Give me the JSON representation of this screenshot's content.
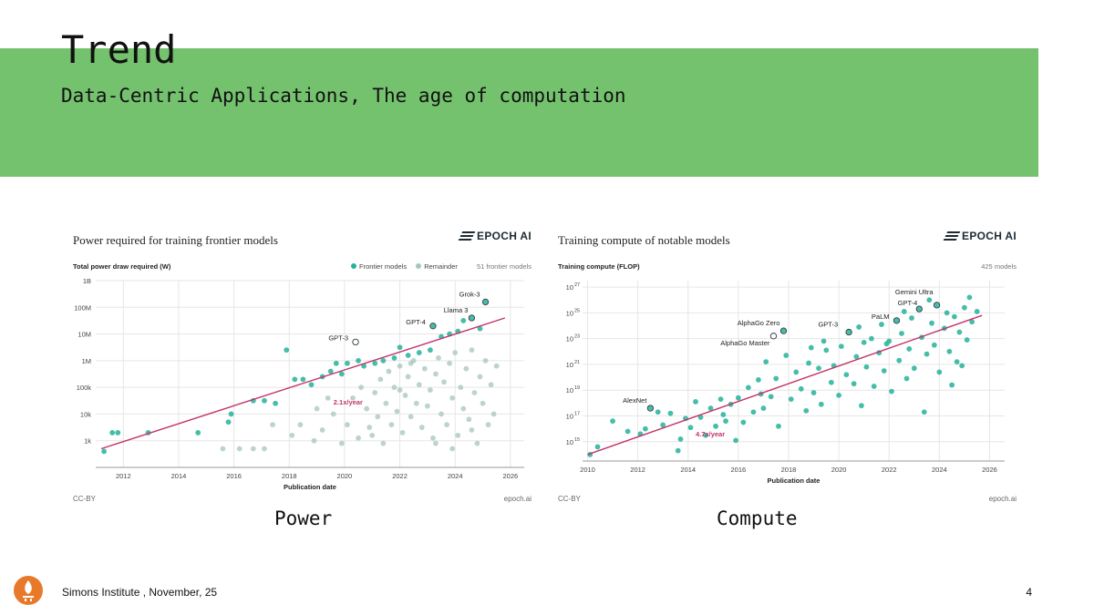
{
  "slide": {
    "title": "Trend",
    "subtitle": "Data-Centric Applications, The age of computation",
    "footer": "Simons Institute , November, 25",
    "page_number": "4",
    "band_color": "#74c16e",
    "captions": {
      "power": "Power",
      "compute": "Compute"
    }
  },
  "chart_data": [
    {
      "type": "scatter",
      "title": "Power required for training frontier models",
      "brand": "EPOCH AI",
      "ylabel": "Total power draw required (W)",
      "xlabel": "Publication date",
      "yscale": "log",
      "xlim": [
        2011,
        2026.5
      ],
      "ylim_exp": [
        2,
        9
      ],
      "xticks": [
        "2012",
        "2014",
        "2016",
        "2018",
        "2020",
        "2022",
        "2024",
        "2026"
      ],
      "yticks": [
        "1k",
        "10k",
        "100k",
        "1M",
        "10M",
        "100M",
        "1B"
      ],
      "legend": {
        "frontier": "Frontier models",
        "remainder": "Remainder",
        "count": "51 frontier models",
        "placement": "top-right"
      },
      "credit": "CC-BY",
      "site": "epoch.ai",
      "colors": {
        "frontier": "#26b29a",
        "remainder": "#a6c6ba",
        "trend": "#c2336b"
      },
      "trend": {
        "label": "2.1x/year",
        "from": [
          2011.2,
          2.7
        ],
        "to": [
          2025.8,
          7.6
        ]
      },
      "annotations": [
        {
          "label": "Grok-3",
          "x": 2025.1,
          "y": 8.2
        },
        {
          "label": "Llama 3",
          "x": 2024.6,
          "y": 7.6
        },
        {
          "label": "GPT-4",
          "x": 2023.2,
          "y": 7.3
        },
        {
          "label": "GPT-3",
          "x": 2020.4,
          "y": 6.7
        }
      ],
      "frontier_points": [
        [
          2011.3,
          2.6
        ],
        [
          2011.6,
          3.3
        ],
        [
          2011.8,
          3.3
        ],
        [
          2012.9,
          3.3
        ],
        [
          2014.7,
          3.3
        ],
        [
          2015.8,
          3.7
        ],
        [
          2015.9,
          4.0
        ],
        [
          2016.7,
          4.5
        ],
        [
          2017.1,
          4.5
        ],
        [
          2017.5,
          4.4
        ],
        [
          2017.9,
          6.4
        ],
        [
          2018.2,
          5.3
        ],
        [
          2018.5,
          5.3
        ],
        [
          2018.8,
          5.1
        ],
        [
          2019.2,
          5.4
        ],
        [
          2019.5,
          5.6
        ],
        [
          2019.7,
          5.9
        ],
        [
          2019.9,
          5.5
        ],
        [
          2020.1,
          5.9
        ],
        [
          2020.5,
          6.0
        ],
        [
          2020.7,
          5.8
        ],
        [
          2021.1,
          5.9
        ],
        [
          2021.4,
          6.0
        ],
        [
          2021.8,
          6.1
        ],
        [
          2022.0,
          6.5
        ],
        [
          2022.3,
          6.2
        ],
        [
          2022.7,
          6.3
        ],
        [
          2023.1,
          6.4
        ],
        [
          2023.2,
          7.3
        ],
        [
          2023.5,
          6.9
        ],
        [
          2023.8,
          7.0
        ],
        [
          2024.1,
          7.1
        ],
        [
          2024.3,
          7.5
        ],
        [
          2024.6,
          7.6
        ],
        [
          2024.9,
          7.2
        ],
        [
          2025.1,
          8.2
        ]
      ],
      "remainder_points": [
        [
          2016.2,
          2.7
        ],
        [
          2016.7,
          2.7
        ],
        [
          2015.6,
          2.7
        ],
        [
          2017.1,
          2.7
        ],
        [
          2017.4,
          3.6
        ],
        [
          2018.1,
          3.2
        ],
        [
          2018.4,
          3.6
        ],
        [
          2018.9,
          3.0
        ],
        [
          2019.0,
          4.2
        ],
        [
          2019.2,
          3.4
        ],
        [
          2019.6,
          4.0
        ],
        [
          2019.9,
          2.9
        ],
        [
          2020.1,
          3.6
        ],
        [
          2020.3,
          4.6
        ],
        [
          2020.5,
          3.1
        ],
        [
          2020.6,
          5.0
        ],
        [
          2020.8,
          4.2
        ],
        [
          2020.9,
          3.5
        ],
        [
          2021.1,
          4.8
        ],
        [
          2021.2,
          3.9
        ],
        [
          2021.3,
          5.3
        ],
        [
          2021.4,
          2.9
        ],
        [
          2021.5,
          4.4
        ],
        [
          2021.6,
          5.6
        ],
        [
          2021.7,
          3.6
        ],
        [
          2021.8,
          5.0
        ],
        [
          2021.9,
          4.1
        ],
        [
          2022.0,
          5.8
        ],
        [
          2022.1,
          3.3
        ],
        [
          2022.2,
          4.7
        ],
        [
          2022.3,
          5.4
        ],
        [
          2022.4,
          3.9
        ],
        [
          2022.5,
          6.0
        ],
        [
          2022.6,
          4.4
        ],
        [
          2022.7,
          5.1
        ],
        [
          2022.8,
          3.5
        ],
        [
          2022.9,
          5.7
        ],
        [
          2023.0,
          4.3
        ],
        [
          2023.1,
          4.9
        ],
        [
          2023.2,
          3.1
        ],
        [
          2023.3,
          5.5
        ],
        [
          2023.4,
          6.1
        ],
        [
          2023.5,
          4.0
        ],
        [
          2023.6,
          5.2
        ],
        [
          2023.7,
          3.6
        ],
        [
          2023.8,
          5.9
        ],
        [
          2023.9,
          4.6
        ],
        [
          2024.0,
          6.3
        ],
        [
          2024.1,
          3.2
        ],
        [
          2024.2,
          5.0
        ],
        [
          2024.3,
          4.2
        ],
        [
          2024.4,
          5.7
        ],
        [
          2024.5,
          3.8
        ],
        [
          2024.6,
          6.4
        ],
        [
          2024.7,
          4.8
        ],
        [
          2024.8,
          2.9
        ],
        [
          2024.9,
          5.4
        ],
        [
          2025.0,
          4.4
        ],
        [
          2025.1,
          6.0
        ],
        [
          2025.2,
          3.6
        ],
        [
          2025.3,
          5.1
        ],
        [
          2025.4,
          4.0
        ],
        [
          2025.5,
          5.8
        ],
        [
          2023.3,
          2.9
        ],
        [
          2022.4,
          5.9
        ],
        [
          2021.0,
          3.2
        ],
        [
          2019.4,
          4.6
        ],
        [
          2023.9,
          2.7
        ],
        [
          2024.6,
          3.4
        ],
        [
          2022.0,
          4.9
        ]
      ]
    },
    {
      "type": "scatter",
      "title": "Training compute of notable models",
      "brand": "EPOCH AI",
      "ylabel": "Training compute (FLOP)",
      "xlabel": "Publication date",
      "yscale": "log",
      "xlim": [
        2009.8,
        2026.6
      ],
      "ylim_exp": [
        13.5,
        27.5
      ],
      "xticks": [
        "2010",
        "2012",
        "2014",
        "2016",
        "2018",
        "2020",
        "2022",
        "2024",
        "2026"
      ],
      "yticks_base": "10",
      "yticks_exp": [
        "15",
        "17",
        "19",
        "21",
        "23",
        "25",
        "27"
      ],
      "count": "425 models",
      "credit": "CC-BY",
      "site": "epoch.ai",
      "colors": {
        "points": "#26b29a",
        "trend": "#c2336b"
      },
      "trend": {
        "label": "4.7x/year",
        "from": [
          2010.0,
          14.0
        ],
        "to": [
          2025.7,
          24.8
        ]
      },
      "annotations": [
        {
          "label": "Gemini Ultra",
          "x": 2023.9,
          "y": 25.6
        },
        {
          "label": "GPT-4",
          "x": 2023.2,
          "y": 25.3
        },
        {
          "label": "PaLM",
          "x": 2022.3,
          "y": 24.4
        },
        {
          "label": "GPT-3",
          "x": 2020.4,
          "y": 23.5
        },
        {
          "label": "AlphaGo Zero",
          "x": 2017.8,
          "y": 23.6
        },
        {
          "label": "AlphaGo Master",
          "x": 2017.4,
          "y": 23.2
        },
        {
          "label": "AlexNet",
          "x": 2012.5,
          "y": 17.6
        }
      ],
      "points": [
        [
          2010.1,
          14.0
        ],
        [
          2010.4,
          14.6
        ],
        [
          2011.0,
          16.6
        ],
        [
          2011.6,
          15.8
        ],
        [
          2012.1,
          15.6
        ],
        [
          2012.3,
          16.0
        ],
        [
          2012.5,
          17.6
        ],
        [
          2012.8,
          17.3
        ],
        [
          2013.0,
          16.3
        ],
        [
          2013.3,
          17.2
        ],
        [
          2013.6,
          14.3
        ],
        [
          2013.7,
          15.2
        ],
        [
          2013.9,
          16.8
        ],
        [
          2014.1,
          16.1
        ],
        [
          2014.3,
          18.1
        ],
        [
          2014.5,
          16.9
        ],
        [
          2014.7,
          15.5
        ],
        [
          2014.9,
          17.6
        ],
        [
          2015.1,
          16.2
        ],
        [
          2015.3,
          18.3
        ],
        [
          2015.5,
          16.6
        ],
        [
          2015.7,
          17.9
        ],
        [
          2015.9,
          15.1
        ],
        [
          2016.0,
          18.4
        ],
        [
          2016.2,
          16.5
        ],
        [
          2016.4,
          19.2
        ],
        [
          2016.6,
          17.3
        ],
        [
          2016.8,
          19.8
        ],
        [
          2017.0,
          17.6
        ],
        [
          2017.1,
          21.2
        ],
        [
          2017.3,
          18.5
        ],
        [
          2017.5,
          19.9
        ],
        [
          2017.6,
          16.2
        ],
        [
          2017.8,
          23.6
        ],
        [
          2017.9,
          21.7
        ],
        [
          2018.1,
          18.3
        ],
        [
          2018.3,
          20.4
        ],
        [
          2018.5,
          19.1
        ],
        [
          2018.7,
          17.4
        ],
        [
          2018.8,
          21.1
        ],
        [
          2019.0,
          18.8
        ],
        [
          2019.2,
          20.7
        ],
        [
          2019.3,
          17.9
        ],
        [
          2019.5,
          22.1
        ],
        [
          2019.7,
          19.6
        ],
        [
          2019.8,
          20.9
        ],
        [
          2020.0,
          18.6
        ],
        [
          2020.1,
          22.4
        ],
        [
          2020.3,
          20.2
        ],
        [
          2020.4,
          23.5
        ],
        [
          2020.6,
          19.5
        ],
        [
          2020.7,
          21.6
        ],
        [
          2020.9,
          17.8
        ],
        [
          2021.0,
          22.7
        ],
        [
          2021.1,
          20.8
        ],
        [
          2021.3,
          23.0
        ],
        [
          2021.4,
          19.3
        ],
        [
          2021.6,
          21.9
        ],
        [
          2021.7,
          24.1
        ],
        [
          2021.8,
          20.5
        ],
        [
          2022.0,
          22.8
        ],
        [
          2022.1,
          18.9
        ],
        [
          2022.3,
          24.4
        ],
        [
          2022.4,
          21.3
        ],
        [
          2022.5,
          23.4
        ],
        [
          2022.7,
          19.9
        ],
        [
          2022.8,
          22.2
        ],
        [
          2022.9,
          24.6
        ],
        [
          2023.0,
          20.7
        ],
        [
          2023.2,
          25.3
        ],
        [
          2023.3,
          23.1
        ],
        [
          2023.4,
          17.3
        ],
        [
          2023.5,
          21.8
        ],
        [
          2023.7,
          24.2
        ],
        [
          2023.8,
          22.5
        ],
        [
          2023.9,
          25.6
        ],
        [
          2024.0,
          20.4
        ],
        [
          2024.2,
          23.8
        ],
        [
          2024.3,
          25.0
        ],
        [
          2024.4,
          22.0
        ],
        [
          2024.6,
          24.7
        ],
        [
          2024.7,
          21.2
        ],
        [
          2024.8,
          23.5
        ],
        [
          2025.0,
          25.4
        ],
        [
          2025.1,
          22.9
        ],
        [
          2025.2,
          26.2
        ],
        [
          2025.3,
          24.3
        ],
        [
          2025.5,
          25.1
        ],
        [
          2019.4,
          22.8
        ],
        [
          2020.8,
          23.9
        ],
        [
          2021.9,
          22.6
        ],
        [
          2023.6,
          26.0
        ],
        [
          2024.5,
          19.4
        ],
        [
          2018.9,
          22.3
        ],
        [
          2016.9,
          18.7
        ],
        [
          2015.4,
          17.1
        ],
        [
          2022.6,
          25.1
        ],
        [
          2024.9,
          20.9
        ]
      ]
    }
  ]
}
